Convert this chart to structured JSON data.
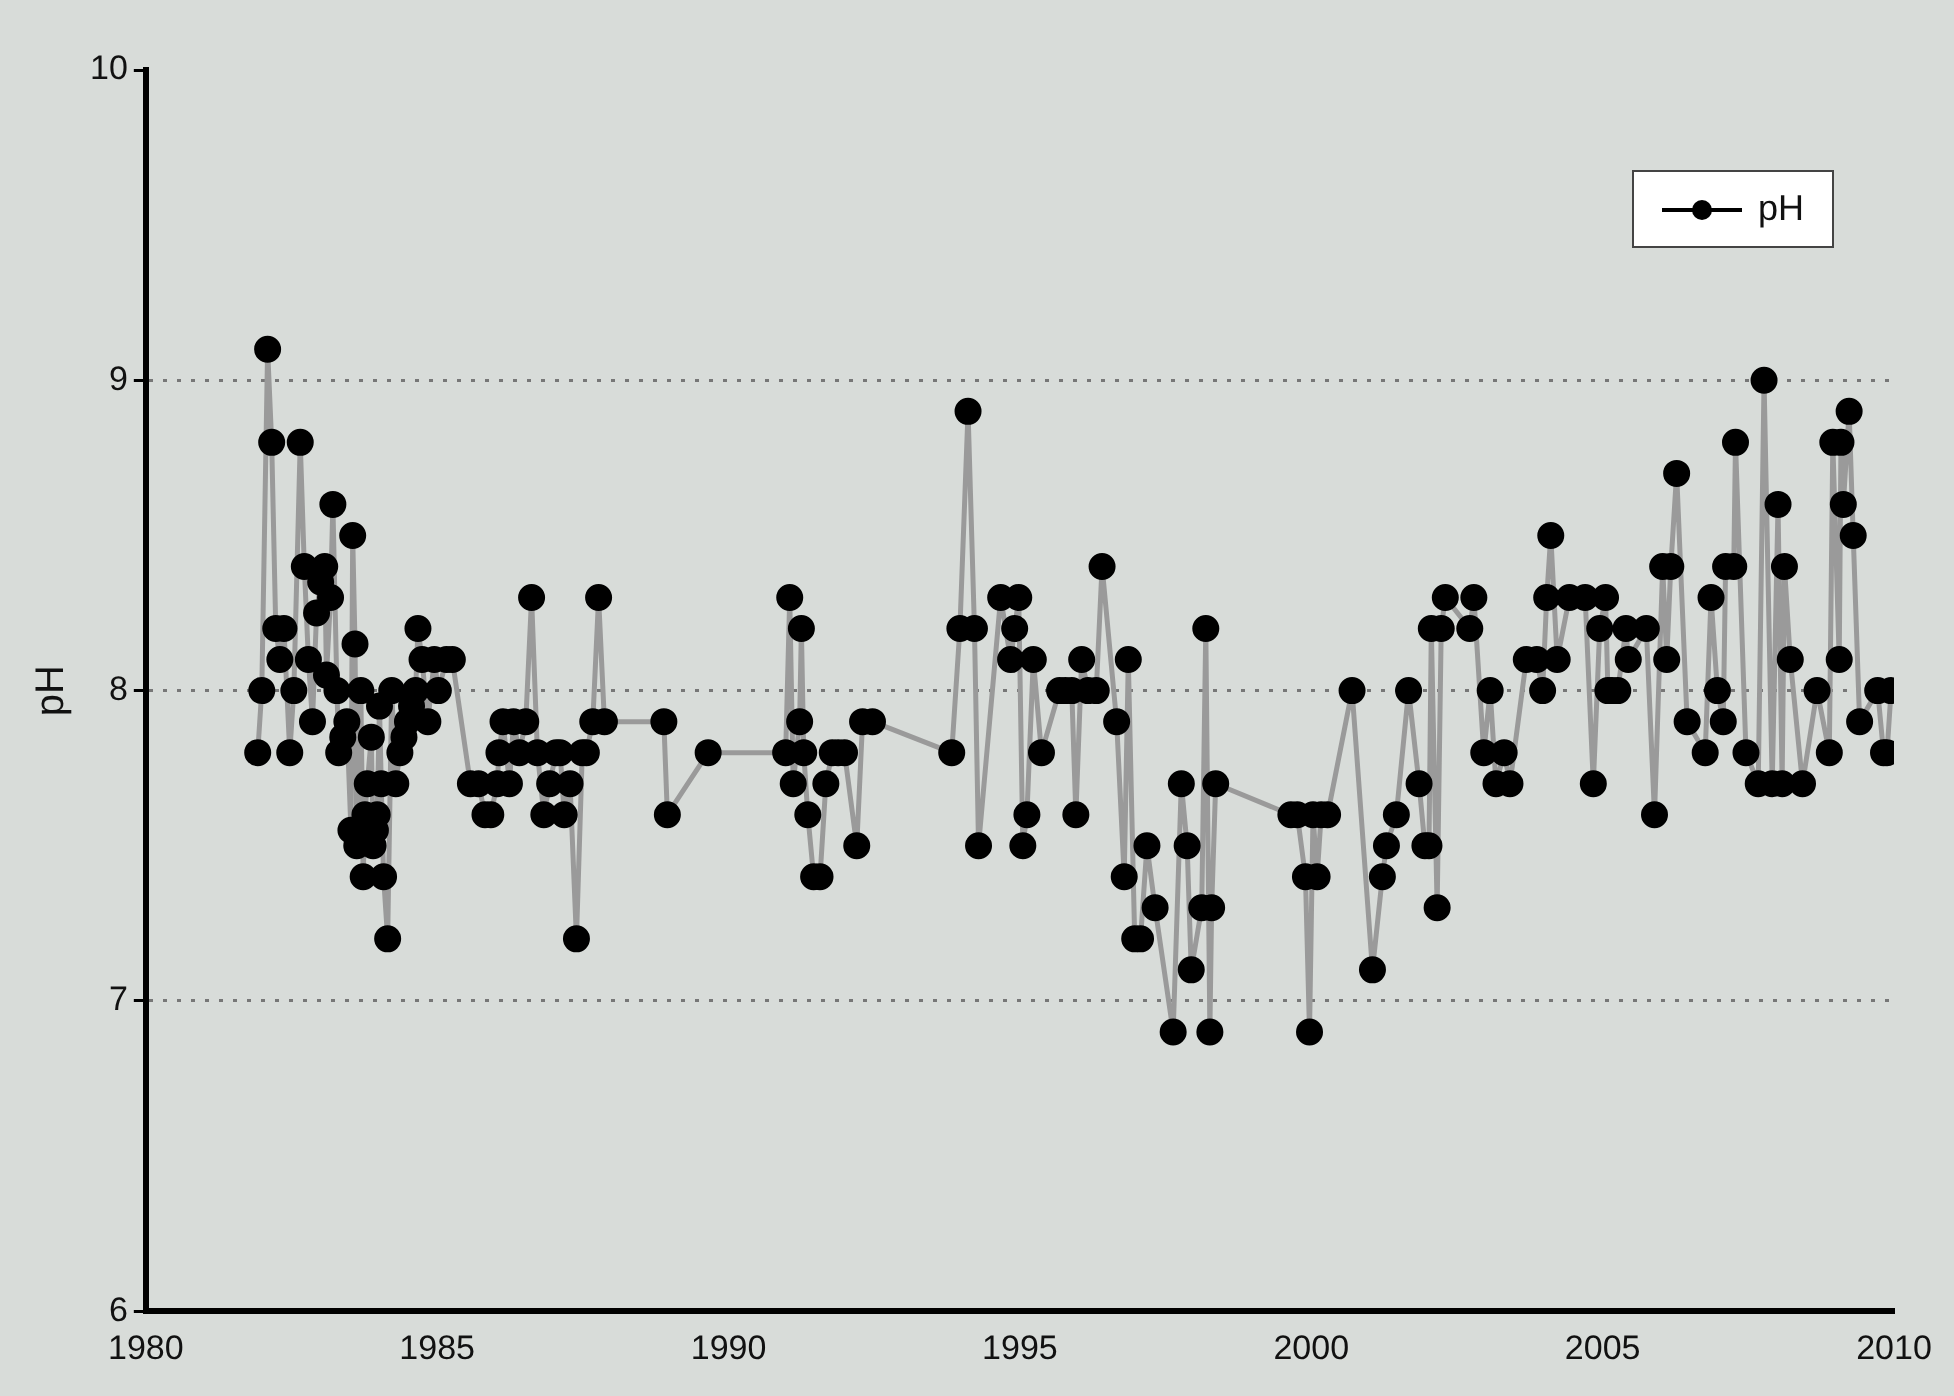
{
  "chart_data": {
    "type": "line",
    "ylabel": "pH",
    "xlim": [
      1980,
      2010
    ],
    "xticks": [
      1980,
      1985,
      1990,
      1995,
      2000,
      2005,
      2010
    ],
    "ylim": [
      6,
      10
    ],
    "yticks": [
      6,
      7,
      8,
      9,
      10
    ],
    "grid": "y",
    "legend": "top right",
    "marker": "circle",
    "line_style": "solid",
    "series": [
      {
        "name": "pH",
        "color": "#000000",
        "x": [
          1981.92,
          1981.99,
          1982.09,
          1982.16,
          1982.23,
          1982.3,
          1982.37,
          1982.47,
          1982.54,
          1982.65,
          1982.72,
          1982.79,
          1982.86,
          1982.93,
          1983.0,
          1983.07,
          1983.1,
          1983.17,
          1983.21,
          1983.28,
          1983.31,
          1983.38,
          1983.45,
          1983.52,
          1983.55,
          1983.59,
          1983.62,
          1983.69,
          1983.73,
          1983.76,
          1983.8,
          1983.87,
          1983.9,
          1983.94,
          1983.97,
          1984.01,
          1984.04,
          1984.08,
          1984.15,
          1984.22,
          1984.29,
          1984.36,
          1984.43,
          1984.49,
          1984.56,
          1984.63,
          1984.67,
          1984.74,
          1984.84,
          1984.95,
          1985.02,
          1985.16,
          1985.26,
          1985.57,
          1985.71,
          1985.82,
          1985.92,
          1986.03,
          1986.06,
          1986.13,
          1986.24,
          1986.31,
          1986.41,
          1986.52,
          1986.62,
          1986.72,
          1986.83,
          1986.93,
          1987.04,
          1987.11,
          1987.18,
          1987.28,
          1987.39,
          1987.49,
          1987.56,
          1987.67,
          1987.77,
          1987.87,
          1988.89,
          1988.95,
          1989.65,
          1990.98,
          1991.05,
          1991.11,
          1991.22,
          1991.25,
          1991.29,
          1991.36,
          1991.46,
          1991.57,
          1991.67,
          1991.78,
          1991.88,
          1991.99,
          1992.2,
          1992.3,
          1992.47,
          1993.83,
          1993.97,
          1994.11,
          1994.22,
          1994.29,
          1994.67,
          1994.84,
          1994.91,
          1994.98,
          1995.05,
          1995.12,
          1995.23,
          1995.37,
          1995.68,
          1995.78,
          1995.89,
          1995.96,
          1996.06,
          1996.17,
          1996.31,
          1996.41,
          1996.66,
          1996.79,
          1996.86,
          1996.97,
          1997.07,
          1997.18,
          1997.32,
          1997.63,
          1997.77,
          1997.87,
          1997.94,
          1998.12,
          1998.19,
          1998.26,
          1998.29,
          1998.36,
          1999.65,
          1999.76,
          1999.9,
          1999.97,
          2000.03,
          2000.1,
          2000.17,
          2000.28,
          2000.7,
          2001.05,
          2001.22,
          2001.29,
          2001.46,
          2001.67,
          2001.85,
          2001.95,
          2002.02,
          2002.06,
          2002.16,
          2002.23,
          2002.3,
          2002.72,
          2002.79,
          2002.96,
          2003.07,
          2003.17,
          2003.31,
          2003.41,
          2003.69,
          2003.87,
          2003.97,
          2004.04,
          2004.11,
          2004.22,
          2004.43,
          2004.7,
          2004.84,
          2004.95,
          2005.05,
          2005.09,
          2005.16,
          2005.26,
          2005.4,
          2005.44,
          2005.75,
          2005.89,
          2006.03,
          2006.1,
          2006.17,
          2006.27,
          2006.45,
          2006.76,
          2006.86,
          2006.97,
          2007.07,
          2007.11,
          2007.25,
          2007.28,
          2007.46,
          2007.67,
          2007.77,
          2007.91,
          2008.01,
          2008.08,
          2008.12,
          2008.22,
          2008.43,
          2008.68,
          2008.89,
          2008.95,
          2009.06,
          2009.09,
          2009.13,
          2009.23,
          2009.3,
          2009.41,
          2009.72,
          2009.82,
          2009.88,
          2009.95
        ],
        "values": [
          7.8,
          8.0,
          9.1,
          8.8,
          8.2,
          8.1,
          8.2,
          7.8,
          8.0,
          8.8,
          8.4,
          8.1,
          7.9,
          8.25,
          8.35,
          8.4,
          8.05,
          8.3,
          8.6,
          8.0,
          7.8,
          7.85,
          7.9,
          7.55,
          8.5,
          8.15,
          7.5,
          8.0,
          7.4,
          7.6,
          7.7,
          7.85,
          7.5,
          7.55,
          7.6,
          7.95,
          7.7,
          7.4,
          7.2,
          8.0,
          7.7,
          7.8,
          7.85,
          7.9,
          7.95,
          8.0,
          8.2,
          8.1,
          7.9,
          8.1,
          8.0,
          8.1,
          8.1,
          7.7,
          7.7,
          7.6,
          7.6,
          7.7,
          7.8,
          7.9,
          7.7,
          7.9,
          7.8,
          7.9,
          8.3,
          7.8,
          7.6,
          7.7,
          7.8,
          7.8,
          7.6,
          7.7,
          7.2,
          7.8,
          7.8,
          7.9,
          8.3,
          7.9,
          7.9,
          7.6,
          7.8,
          7.8,
          8.3,
          7.7,
          7.9,
          8.2,
          7.8,
          7.6,
          7.4,
          7.4,
          7.7,
          7.8,
          7.8,
          7.8,
          7.5,
          7.9,
          7.9,
          7.8,
          8.2,
          8.9,
          8.2,
          7.5,
          8.3,
          8.1,
          8.2,
          8.3,
          7.5,
          7.6,
          8.1,
          7.8,
          8.0,
          8.0,
          8.0,
          7.6,
          8.1,
          8.0,
          8.0,
          8.4,
          7.9,
          7.4,
          8.1,
          7.2,
          7.2,
          7.5,
          7.3,
          6.9,
          7.7,
          7.5,
          7.1,
          7.3,
          8.2,
          6.9,
          7.3,
          7.7,
          7.6,
          7.6,
          7.4,
          6.9,
          7.6,
          7.4,
          7.6,
          7.6,
          8.0,
          7.1,
          7.4,
          7.5,
          7.6,
          8.0,
          7.7,
          7.5,
          7.5,
          8.2,
          7.3,
          8.2,
          8.3,
          8.2,
          8.3,
          7.8,
          8.0,
          7.7,
          7.8,
          7.7,
          8.1,
          8.1,
          8.0,
          8.3,
          8.5,
          8.1,
          8.3,
          8.3,
          7.7,
          8.2,
          8.3,
          8.0,
          8.0,
          8.0,
          8.2,
          8.1,
          8.2,
          7.6,
          8.4,
          8.1,
          8.4,
          8.7,
          7.9,
          7.8,
          8.3,
          8.0,
          7.9,
          8.4,
          8.4,
          8.8,
          7.8,
          7.7,
          9.0,
          7.7,
          8.6,
          7.7,
          8.4,
          8.1,
          7.7,
          8.0,
          7.8,
          8.8,
          8.1,
          8.8,
          8.6,
          8.9,
          8.5,
          7.9,
          8.0,
          7.8,
          7.8,
          8.0
        ]
      }
    ]
  }
}
